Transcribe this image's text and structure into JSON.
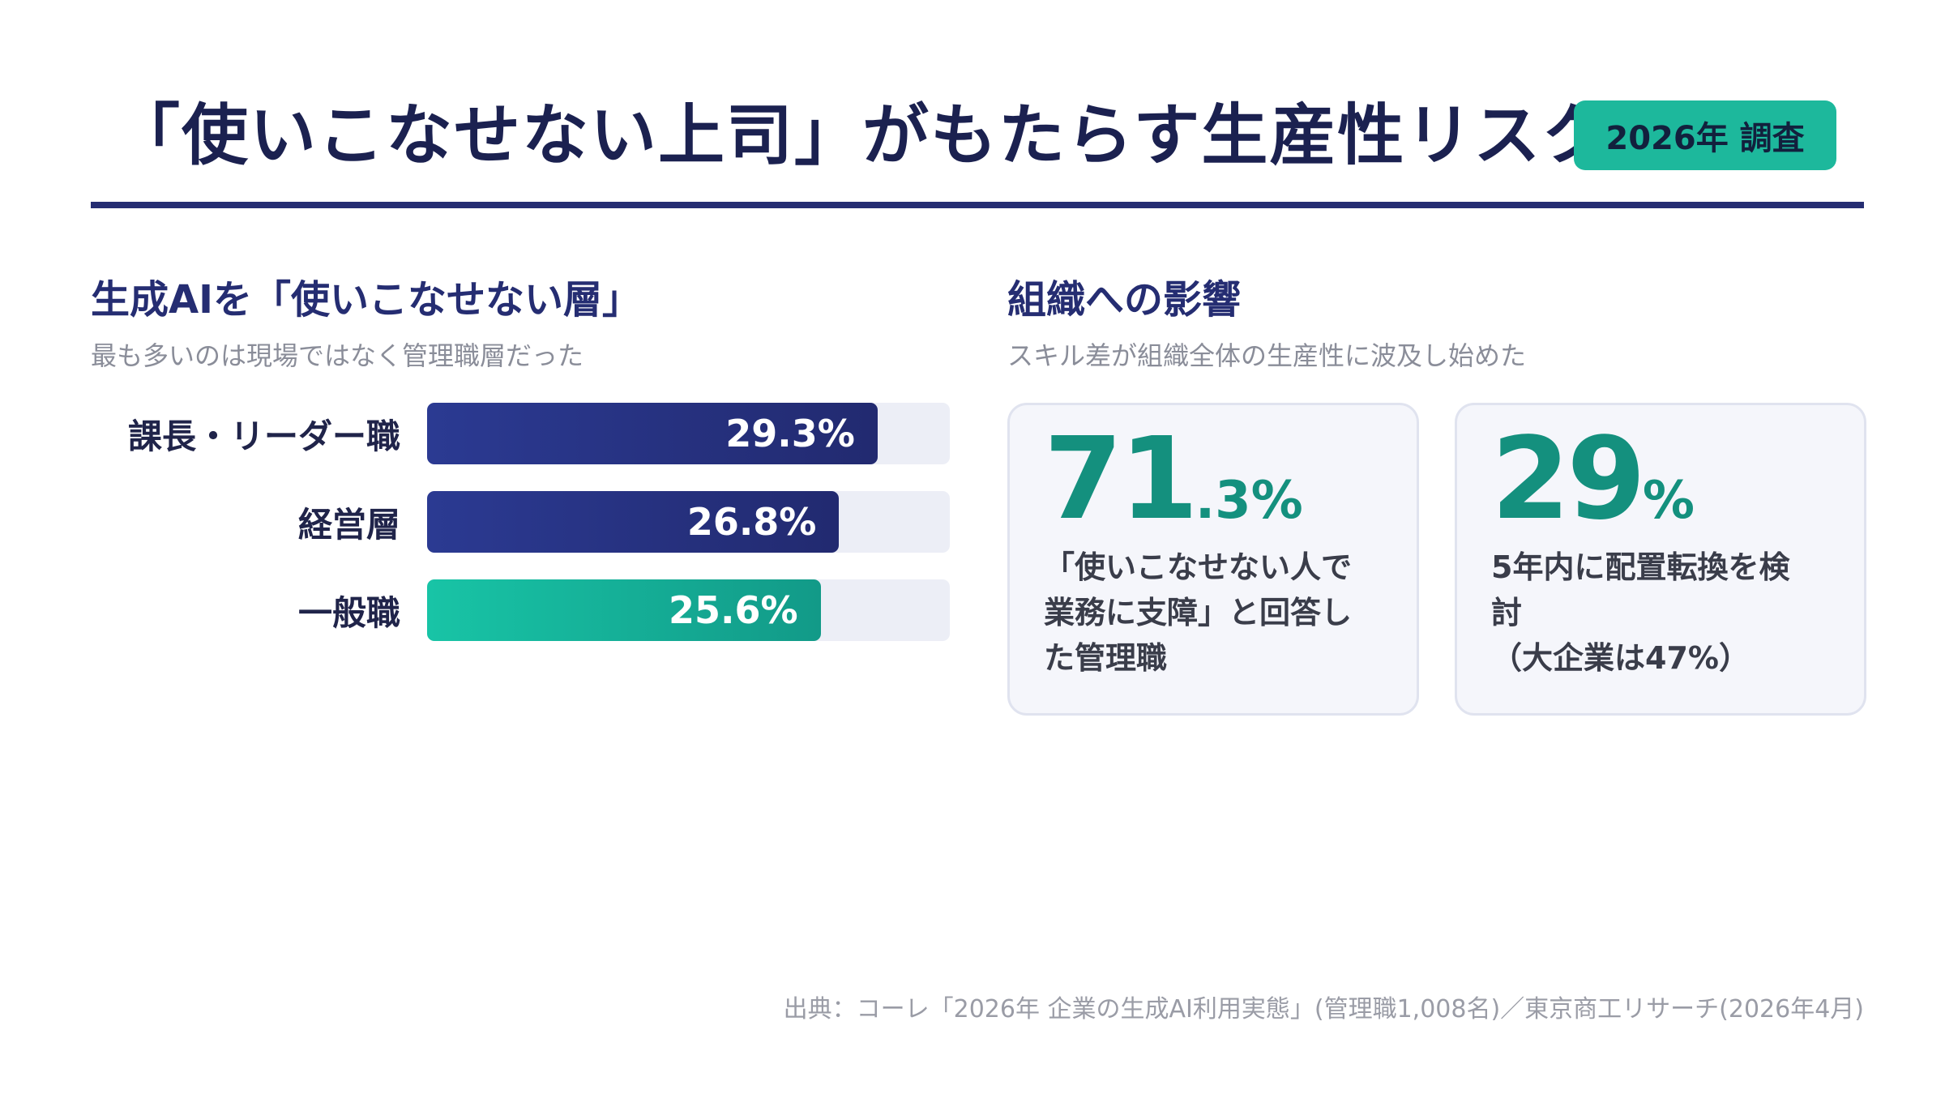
{
  "header": {
    "title": "「使いこなせない上司」がもたらす生産性リスク",
    "badge": "2026年 調査"
  },
  "left": {
    "heading": "生成AIを「使いこなせない層」",
    "subheading": "最も多いのは現場ではなく管理職層だった"
  },
  "chart_data": {
    "type": "bar",
    "orientation": "horizontal",
    "categories": [
      "課長・リーダー職",
      "経営層",
      "一般職"
    ],
    "values": [
      29.3,
      26.8,
      25.6
    ],
    "value_labels": [
      "29.3%",
      "26.8%",
      "25.6%"
    ],
    "unit": "%",
    "colors": [
      "#2b3a92",
      "#2b3a92",
      "#18c4a6"
    ],
    "xlim": [
      0,
      34
    ]
  },
  "right": {
    "heading": "組織への影響",
    "subheading": "スキル差が組織全体の生産性に波及し始めた",
    "cards": [
      {
        "value_main": "71",
        "value_sub": ".3%",
        "description": "「使いこなせない人で\n業務に支障」と回答し\nた管理職"
      },
      {
        "value_main": "29",
        "value_sub": "%",
        "description": "5年内に配置転換を検\n討\n（大企業は47%）"
      }
    ]
  },
  "footer": {
    "source": "出典：コーレ「2026年 企業の生成AI利用実態」(管理職1,008名)／東京商工リサーチ(2026年4月)"
  },
  "colors": {
    "navy": "#252d72",
    "teal": "#1db89c",
    "stat_teal": "#14907e"
  }
}
